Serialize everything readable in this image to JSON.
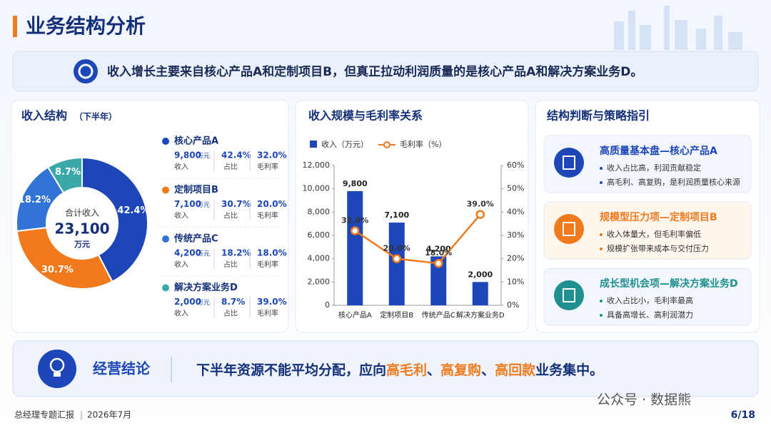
{
  "header": {
    "title": "业务结构分析"
  },
  "summary": "收入增长主要来自核心产品A和定制项目B，但真正拉动利润质量的是核心产品A和解决方案业务D。",
  "chart_data": [
    {
      "type": "donut",
      "title": "收入结构",
      "subtitle": "（下半年）",
      "categories": [
        "核心产品A",
        "定制项目B",
        "传统产品C",
        "解决方案业务D"
      ],
      "values": [
        42.4,
        30.7,
        18.2,
        8.7
      ],
      "value_labels": [
        "42.4%",
        "30.7%",
        "18.2%",
        "8.7%"
      ],
      "colors": [
        "#1d47b8",
        "#f07a1c",
        "#3274d6",
        "#3aa8a8"
      ],
      "center_label": "合计收入",
      "total": {
        "value": 23100,
        "label": "23,100"
      },
      "unit": "万元",
      "detail_labels": {
        "revenue": "收入",
        "share": "占比",
        "margin": "毛利率"
      }
    },
    {
      "type": "combo",
      "title": "收入规模与毛利率关系",
      "categories": [
        "核心产品A",
        "定制项目B",
        "传统产品C",
        "解决方案业务D"
      ],
      "series": [
        {
          "name": "收入（万元）",
          "color": "#1d47b8",
          "values": [
            9800,
            7100,
            4200,
            2000
          ],
          "value_labels": [
            "9,800",
            "7,100",
            "4,200",
            "2,000"
          ]
        },
        {
          "name": "毛利率（%）",
          "color": "#f07a1c",
          "axis": "y2",
          "values": [
            32.0,
            20.0,
            18.0,
            39.0
          ],
          "value_labels": [
            "32.0%",
            "20.0%",
            "18.0%",
            "39.0%"
          ]
        }
      ],
      "ylim": [
        0,
        12000
      ],
      "yticks": [
        0,
        {
          "value": 2000,
          "label": "2,000"
        },
        {
          "value": 4000,
          "label": "4,000"
        },
        {
          "value": 6000,
          "label": "6,000"
        },
        {
          "value": 8000,
          "label": "8,000"
        },
        {
          "value": 10000,
          "label": "10,000"
        },
        {
          "value": 12000,
          "label": "12,000"
        }
      ],
      "y2lim": [
        0,
        60
      ],
      "y2ticks": [
        {
          "value": 0,
          "label": "0%"
        },
        {
          "value": 10,
          "label": "10%"
        },
        {
          "value": 20,
          "label": "20%"
        },
        {
          "value": 30,
          "label": "30%"
        },
        {
          "value": 40,
          "label": "40%"
        },
        {
          "value": 50,
          "label": "50%"
        },
        {
          "value": 60,
          "label": "60%"
        }
      ]
    }
  ],
  "strategy": {
    "title": "结构判断与策略指引",
    "items": [
      {
        "title": "高质量基本盘—核心产品A",
        "color": "#1d47b8",
        "points": [
          "收入占比高，利润贡献稳定",
          "高毛利、高复购，是利润质量核心来源"
        ]
      },
      {
        "title": "规模型压力项—定制项目B",
        "color": "#f07a1c",
        "points": [
          "收入体量大，但毛利率偏低",
          "规模扩张带来成本与交付压力"
        ]
      },
      {
        "title": "成长型机会项—解决方案业务D",
        "color": "#1f8f8f",
        "points": [
          "收入占比小，毛利率最高",
          "具备高增长、高利润潜力"
        ]
      }
    ]
  },
  "conclusion": {
    "label": "经营结论",
    "segments": [
      {
        "text": "下半年资源不能平均分配，应向",
        "highlight": false
      },
      {
        "text": "高毛利",
        "highlight": true
      },
      {
        "text": "、",
        "highlight": false
      },
      {
        "text": "高复购",
        "highlight": true
      },
      {
        "text": "、",
        "highlight": false
      },
      {
        "text": "高回款",
        "highlight": true
      },
      {
        "text": "业务集中。",
        "highlight": false
      }
    ]
  },
  "footer": {
    "report": "总经理专题汇报",
    "date": "2026年7月",
    "page": "6/18",
    "watermark": "公众号 · 数据熊"
  }
}
